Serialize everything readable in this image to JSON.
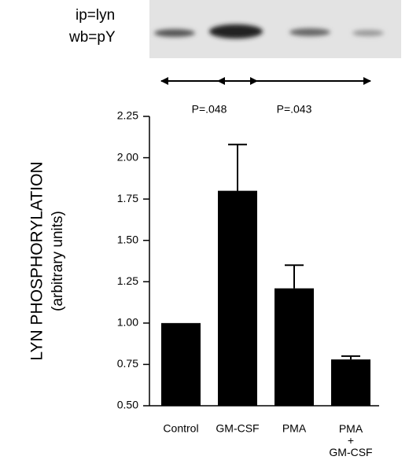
{
  "chart_data": {
    "type": "bar",
    "blot_labels": [
      "ip=lyn",
      "wb=pY"
    ],
    "annotations": [
      {
        "text": "P=.048",
        "from": 0,
        "to": 1
      },
      {
        "text": "P=.043",
        "from": 1,
        "to": 3
      }
    ],
    "ylabel": "LYN PHOSPHORYLATION",
    "ylabel_units": "(arbitrary units)",
    "categories": [
      "Control",
      "GM-CSF",
      "PMA",
      "PMA\n+\nGM-CSF"
    ],
    "values": [
      1.0,
      1.8,
      1.21,
      0.78
    ],
    "errors": [
      0,
      0.28,
      0.14,
      0.02
    ],
    "color": "#000000",
    "ylim": [
      0.5,
      2.25
    ],
    "yticks": [
      {
        "value": 0.5,
        "label": "0.50"
      },
      0.75,
      {
        "value": 1,
        "label": "1.00"
      },
      1.25,
      {
        "value": 1.5,
        "label": "1.50"
      },
      1.75,
      {
        "value": 2,
        "label": "2.00"
      },
      2.25
    ],
    "grid": false
  }
}
